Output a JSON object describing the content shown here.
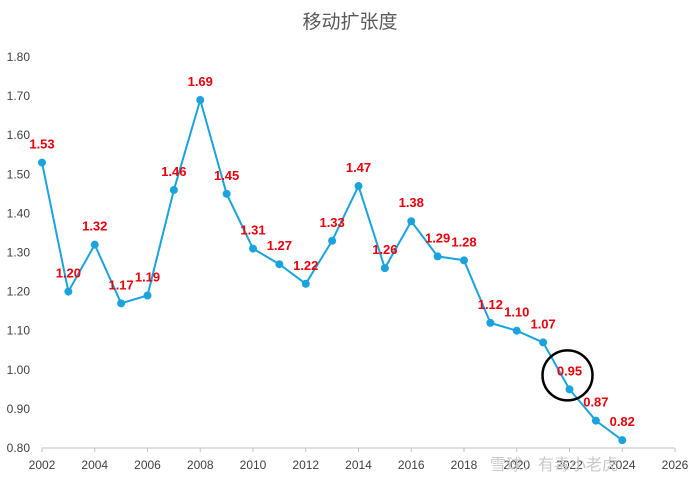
{
  "chart_data": {
    "type": "line",
    "title": "移动扩张度",
    "xlabel": "",
    "ylabel": "",
    "xlim": [
      2002,
      2026
    ],
    "ylim": [
      0.8,
      1.8
    ],
    "x_ticks": [
      "2002",
      "2004",
      "2006",
      "2008",
      "2010",
      "2012",
      "2014",
      "2016",
      "2018",
      "2020",
      "2022",
      "2024",
      "2026"
    ],
    "y_ticks": [
      "0.80",
      "0.90",
      "1.00",
      "1.10",
      "1.20",
      "1.30",
      "1.40",
      "1.50",
      "1.60",
      "1.70",
      "1.80"
    ],
    "grid": false,
    "series": [
      {
        "x": [
          2002,
          2003,
          2004,
          2005,
          2006,
          2007,
          2008,
          2009,
          2010,
          2011,
          2012,
          2013,
          2014,
          2015,
          2016,
          2017,
          2018,
          2019,
          2020,
          2021,
          2022,
          2023,
          2024
        ],
        "values": [
          1.53,
          1.2,
          1.32,
          1.17,
          1.19,
          1.46,
          1.69,
          1.45,
          1.31,
          1.27,
          1.22,
          1.33,
          1.47,
          1.26,
          1.38,
          1.29,
          1.28,
          1.12,
          1.1,
          1.07,
          0.95,
          0.87,
          0.82
        ],
        "labels": [
          "1.53",
          "1.20",
          "1.32",
          "1.17",
          "1.19",
          "1.46",
          "1.69",
          "1.45",
          "1.31",
          "1.27",
          "1.22",
          "1.33",
          "1.47",
          "1.26",
          "1.38",
          "1.29",
          "1.28",
          "1.12",
          "1.10",
          "1.07",
          "0.95",
          "0.87",
          "0.82"
        ]
      }
    ],
    "annotations": [
      {
        "type": "circle",
        "target_x": 2022
      }
    ],
    "colors": {
      "line": "#1aa3dc",
      "label": "#e8000b",
      "circle": "#000000"
    }
  },
  "watermark": "雪球：有毒小老虎"
}
